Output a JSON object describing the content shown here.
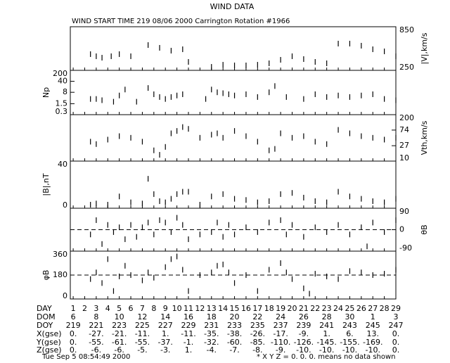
{
  "header": {
    "title": "WIND DATA",
    "subtitle": "WIND START TIME 219 08/06 2000 Carrington Rotation #1966"
  },
  "day_axis": {
    "xlim": [
      0.75,
      29
    ],
    "xticks": [
      1,
      2,
      3,
      4,
      5,
      6,
      7,
      8,
      9,
      10,
      11,
      12,
      13,
      14,
      15,
      16,
      17,
      18,
      19,
      20,
      21,
      22,
      23,
      24,
      25,
      26,
      27,
      28,
      29
    ]
  },
  "chart_data": [
    {
      "type": "scatter",
      "ylabel": "|V|,km/s",
      "axis_side": "right",
      "log": false,
      "color": "#000000",
      "ylim": [
        250,
        850
      ],
      "yticks": [
        250,
        850
      ],
      "x": [
        2.5,
        3,
        3.5,
        4.3,
        5,
        6,
        7.5,
        8.5,
        9.5,
        10.5,
        11,
        13,
        14,
        15,
        16,
        17,
        18,
        19,
        20,
        21,
        22,
        23,
        24,
        25,
        26,
        27,
        28,
        29
      ],
      "values": [
        473,
        444,
        424,
        444,
        473,
        444,
        598,
        560,
        521,
        540,
        366,
        298,
        327,
        318,
        318,
        327,
        347,
        395,
        444,
        405,
        366,
        347,
        618,
        618,
        589,
        540,
        511,
        444
      ]
    },
    {
      "type": "scatter",
      "ylabel": "Np",
      "axis_side": "left",
      "log": true,
      "color": "#000000",
      "ylim": [
        0.3,
        200
      ],
      "yticks": [
        0.3,
        1.5,
        8,
        40,
        200
      ],
      "x": [
        2.5,
        3,
        3.5,
        4.5,
        5,
        5.5,
        6.5,
        7.5,
        8,
        8.5,
        9,
        9.5,
        10,
        10.5,
        12.5,
        13,
        13.5,
        14,
        14.5,
        15,
        16,
        17,
        18,
        18.5,
        19.5,
        21,
        22,
        23,
        24,
        25,
        26,
        27,
        28,
        29
      ],
      "values": [
        3,
        3,
        2.5,
        2,
        5,
        12,
        2,
        15,
        6,
        4,
        3,
        4,
        5,
        6,
        3,
        12,
        8,
        7,
        6,
        5,
        6,
        4,
        8,
        20,
        4,
        3,
        6,
        4,
        5,
        4,
        5,
        6,
        3,
        2.5
      ]
    },
    {
      "type": "scatter",
      "ylabel": "Vth,km/s",
      "axis_side": "right",
      "log": true,
      "color": "#000000",
      "ylim": [
        10,
        200
      ],
      "yticks": [
        10,
        27,
        74,
        200
      ],
      "x": [
        2.5,
        3,
        4,
        5,
        6,
        7,
        8,
        8.5,
        9,
        9.5,
        10,
        10.5,
        11,
        12,
        13,
        13.5,
        14,
        15,
        16,
        17,
        18,
        18.5,
        19,
        20,
        21,
        22,
        23,
        24,
        25,
        26,
        27,
        28,
        29
      ],
      "values": [
        35,
        30,
        40,
        50,
        45,
        35,
        20,
        15,
        25,
        60,
        70,
        90,
        80,
        45,
        55,
        60,
        45,
        70,
        50,
        35,
        20,
        22,
        60,
        45,
        50,
        35,
        30,
        75,
        60,
        50,
        45,
        40,
        45
      ]
    },
    {
      "type": "scatter",
      "ylabel": "|B|,nT",
      "axis_side": "left",
      "log": false,
      "color": "#000000",
      "ylim": [
        0,
        40
      ],
      "yticks": [
        0,
        40
      ],
      "x": [
        2.5,
        3,
        4,
        5,
        6,
        7,
        7.5,
        8,
        8.5,
        9,
        9.5,
        10,
        10.5,
        11,
        12,
        13,
        14,
        15,
        16,
        17,
        18,
        19,
        20,
        21,
        22,
        23,
        24,
        25,
        26,
        27,
        28,
        29
      ],
      "values": [
        3,
        4,
        3,
        10,
        5,
        4,
        25,
        12,
        6,
        5,
        8,
        12,
        14,
        14,
        3,
        10,
        12,
        8,
        7,
        5,
        6,
        12,
        13,
        9,
        6,
        5,
        14,
        10,
        8,
        6,
        5,
        8
      ]
    },
    {
      "type": "scatter",
      "ylabel": "θB",
      "axis_side": "right",
      "log": false,
      "color": "#000000",
      "ylim": [
        -90,
        90
      ],
      "yticks": [
        -90,
        0,
        90
      ],
      "reference_line": 0,
      "x": [
        2.5,
        3,
        3.5,
        4,
        4.5,
        5,
        5.5,
        6,
        6.5,
        7,
        7.5,
        8,
        8.5,
        9,
        9.5,
        10,
        10.5,
        11,
        12,
        13,
        13.5,
        14,
        14.5,
        15,
        16,
        17,
        18,
        19,
        19.5,
        20,
        21,
        22,
        23,
        24,
        25,
        26,
        26.5,
        27,
        28,
        29
      ],
      "values": [
        -20,
        40,
        -60,
        20,
        -10,
        10,
        -40,
        20,
        -30,
        10,
        30,
        -20,
        40,
        30,
        -10,
        50,
        20,
        -40,
        -20,
        -10,
        30,
        -30,
        20,
        -20,
        10,
        -10,
        30,
        40,
        -20,
        20,
        -30,
        10,
        -10,
        20,
        -20,
        10,
        -70,
        30,
        -10,
        40
      ]
    },
    {
      "type": "scatter",
      "ylabel": "φB",
      "axis_side": "left",
      "log": false,
      "color": "#000000",
      "ylim": [
        0,
        360
      ],
      "yticks": [
        0,
        180,
        360
      ],
      "reference_line": 180,
      "x": [
        2.5,
        3,
        3.5,
        4,
        4.5,
        5,
        5.5,
        6,
        7,
        7.5,
        8,
        9,
        9.5,
        10,
        10.5,
        11,
        12,
        13,
        13.5,
        14,
        14.5,
        15,
        16,
        17,
        18,
        19,
        19.5,
        20,
        21,
        21.5,
        22,
        23,
        24,
        25,
        26,
        27,
        28,
        29
      ],
      "values": [
        150,
        200,
        120,
        300,
        60,
        170,
        250,
        180,
        140,
        200,
        160,
        240,
        300,
        320,
        220,
        60,
        180,
        200,
        250,
        260,
        200,
        120,
        180,
        60,
        220,
        270,
        200,
        150,
        80,
        40,
        190,
        170,
        150,
        210,
        200,
        180,
        190,
        220
      ]
    }
  ],
  "table": {
    "rows": [
      {
        "label": "DAY"
      },
      {
        "label": "DOM",
        "values": [
          "6",
          "8",
          "10",
          "12",
          "14",
          "16",
          "18",
          "20",
          "22",
          "24",
          "26",
          "28",
          "30",
          "1",
          "3"
        ]
      },
      {
        "label": "DOY",
        "values": [
          "219",
          "221",
          "223",
          "225",
          "227",
          "229",
          "231",
          "233",
          "235",
          "237",
          "239",
          "241",
          "243",
          "245",
          "247"
        ]
      },
      {
        "label": "X(gse)",
        "values": [
          "0.",
          "-27.",
          "-21.",
          "-11.",
          "1.",
          "-11.",
          "-35.",
          "-38.",
          "-26.",
          "-17.",
          "-9.",
          "1.",
          "6.",
          "13.",
          "0."
        ]
      },
      {
        "label": "Y(gse)",
        "values": [
          "0.",
          "-55.",
          "-61.",
          "-55.",
          "-37.",
          "-1.",
          "-32.",
          "-60.",
          "-85.",
          "-110.",
          "-126.",
          "-145.",
          "-155.",
          "-169.",
          "0."
        ]
      },
      {
        "label": "Z(gse)",
        "values": [
          "0.",
          "-6.",
          "-6.",
          "-5.",
          "-3.",
          "1.",
          "-4.",
          "-7.",
          "-8.",
          "-9.",
          "-10.",
          "-10.",
          "-10.",
          "-10.",
          "0."
        ]
      }
    ]
  },
  "footer": {
    "timestamp": "Tue Sep  5 08:54:49 2000",
    "note": "* X Y Z = 0. 0. 0. means no data shown"
  }
}
